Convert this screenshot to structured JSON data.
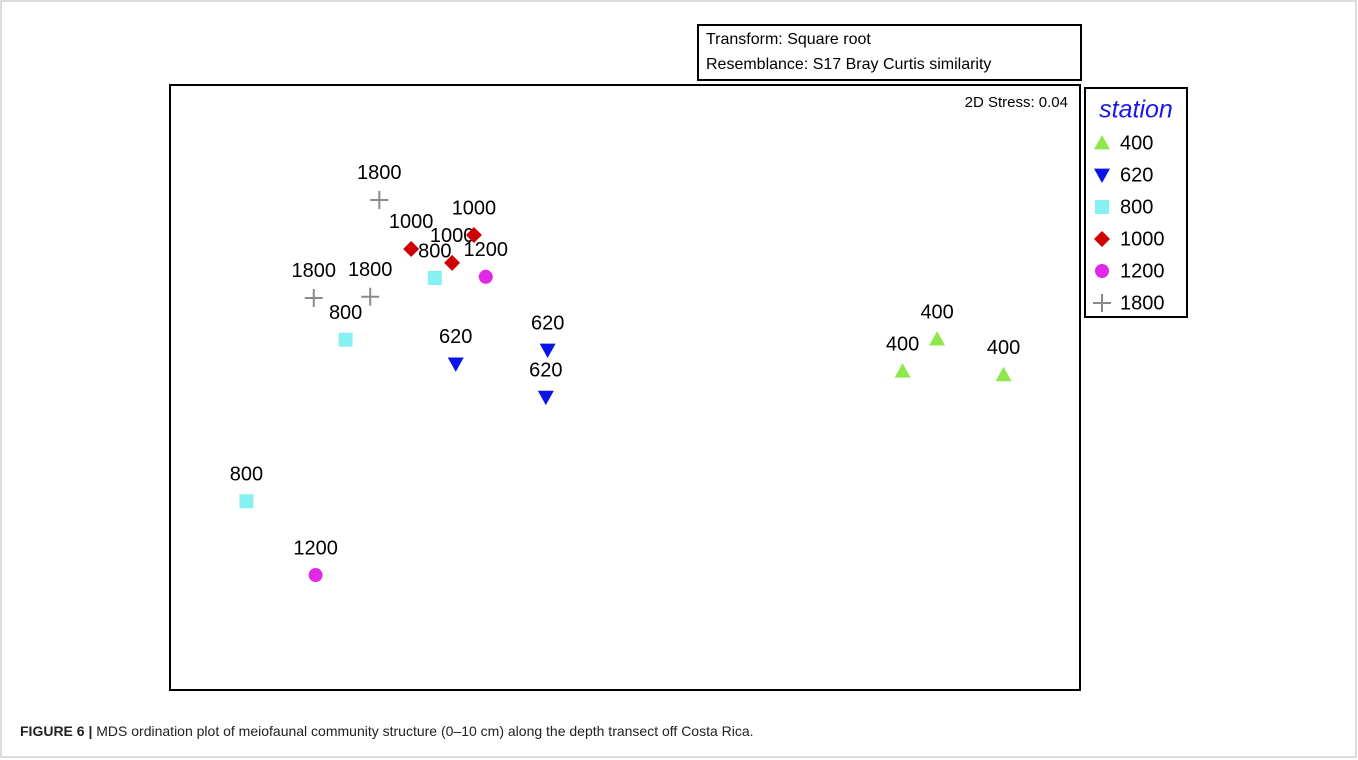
{
  "chart_data": {
    "type": "scatter",
    "box_lines": [
      "Transform: Square root",
      "Resemblance: S17 Bray Curtis similarity"
    ],
    "stress": "2D Stress: 0.04",
    "legend_title": "station",
    "caption_label": "FIGURE 6 |",
    "caption": "MDS ordination plot of meiofaunal community structure (0–10 cm) along the depth transect off Costa Rica.",
    "xlim": [
      0,
      100
    ],
    "ylim": [
      0,
      100
    ],
    "legend": "outside-right",
    "series": [
      {
        "name": "400",
        "color": "#8fe84b",
        "marker": "triangle-up",
        "x": [
          80.5,
          84.3,
          91.6
        ],
        "values": [
          52.7,
          58.0,
          52.1
        ]
      },
      {
        "name": "620",
        "color": "#0a14e6",
        "marker": "triangle-down",
        "x": [
          31.4,
          41.5,
          41.3
        ],
        "values": [
          53.9,
          56.2,
          48.4
        ]
      },
      {
        "name": "800",
        "color": "#86f0f2",
        "marker": "square",
        "x": [
          29.1,
          19.3,
          8.4
        ],
        "values": [
          68.1,
          57.9,
          31.2
        ]
      },
      {
        "name": "1000",
        "color": "#d00000",
        "marker": "diamond",
        "x": [
          26.5,
          31.0,
          33.4
        ],
        "values": [
          72.9,
          70.6,
          75.2
        ]
      },
      {
        "name": "1200",
        "color": "#e028e6",
        "marker": "circle",
        "x": [
          34.7,
          16.0
        ],
        "values": [
          68.3,
          19.0
        ]
      },
      {
        "name": "1800",
        "color": "#8a8a8a",
        "marker": "plus",
        "x": [
          23.0,
          15.8,
          22.0
        ],
        "values": [
          81.0,
          64.8,
          65.0
        ]
      }
    ]
  }
}
